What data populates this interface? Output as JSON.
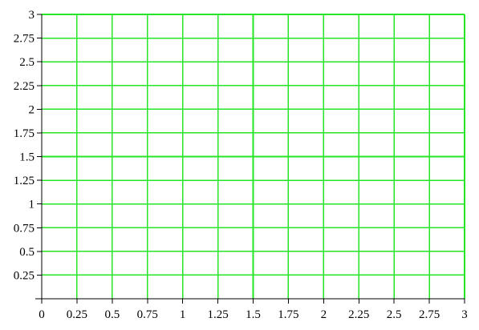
{
  "chart_data": {
    "type": "scatter",
    "title": "",
    "xlabel": "",
    "ylabel": "",
    "xlim": [
      0,
      3
    ],
    "ylim": [
      0,
      3
    ],
    "grid": true,
    "grid_color": "#26e426",
    "axis_color": "#000000",
    "x_ticks": [
      0,
      0.25,
      0.5,
      0.75,
      1,
      1.25,
      1.5,
      1.75,
      2,
      2.25,
      2.5,
      2.75,
      3
    ],
    "x_tick_labels": [
      "0",
      "0.25",
      "0.5",
      "0.75",
      "1",
      "1.25",
      "1.5",
      "1.75",
      "2",
      "2.25",
      "2.5",
      "2.75",
      "3"
    ],
    "y_ticks": [
      0.25,
      0.5,
      0.75,
      1,
      1.25,
      1.5,
      1.75,
      2,
      2.25,
      2.5,
      2.75,
      3
    ],
    "y_tick_labels": [
      "0.25",
      "0.5",
      "0.75",
      "1",
      "1.25",
      "1.5",
      "1.75",
      "2",
      "2.25",
      "2.5",
      "2.75",
      "3"
    ],
    "series": []
  }
}
